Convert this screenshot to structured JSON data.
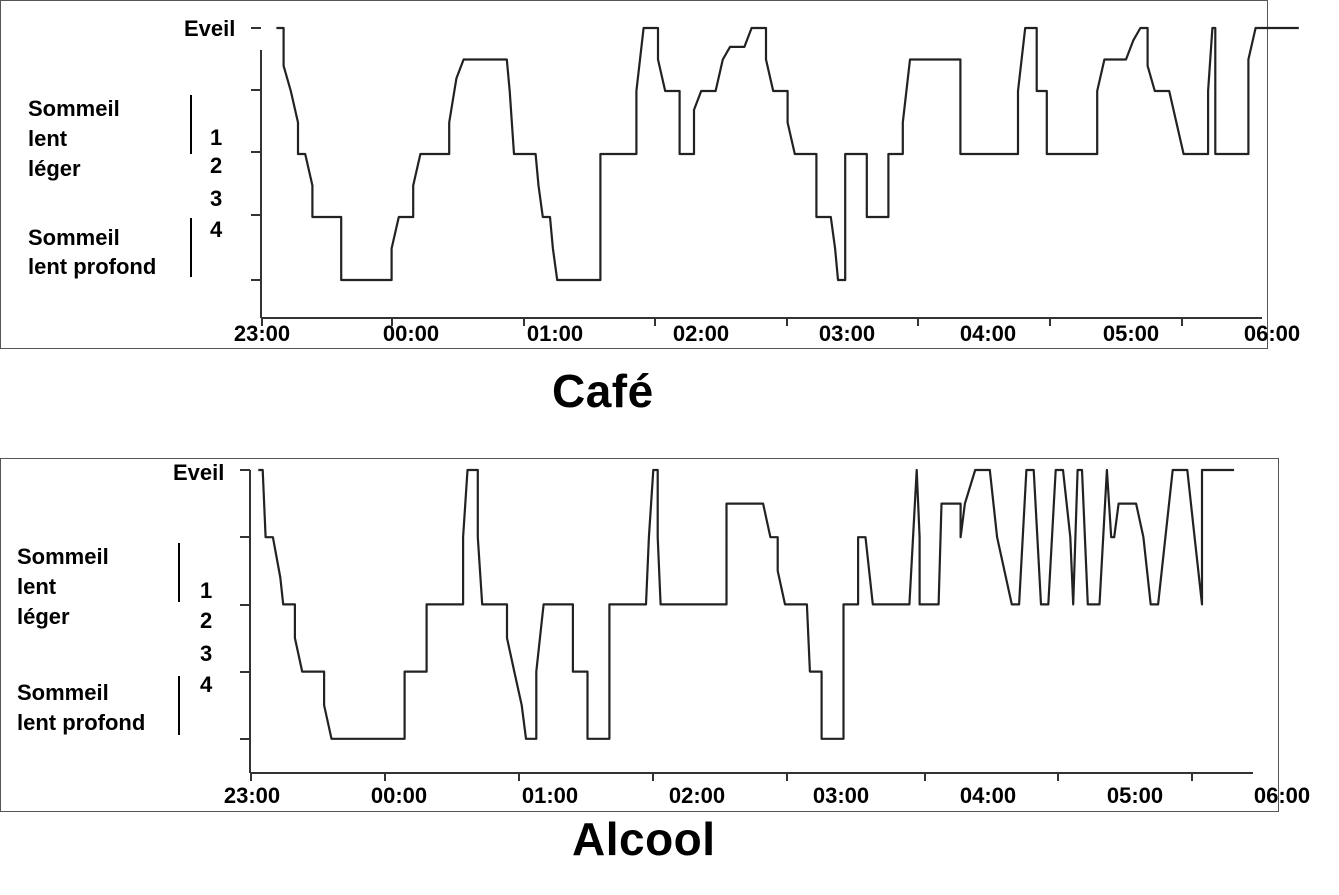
{
  "chart_data": [
    {
      "type": "line",
      "title": "Café",
      "y_categories": [
        "Eveil",
        "1",
        "2",
        "3",
        "4"
      ],
      "y_group_labels": [
        {
          "lines": [
            "Sommeil",
            "lent",
            "léger"
          ],
          "covers": [
            "1",
            "2"
          ]
        },
        {
          "lines": [
            "Sommeil",
            "lent profond"
          ],
          "covers": [
            "3",
            "4"
          ]
        }
      ],
      "x_tick_labels": [
        "23:00",
        "00:00",
        "01:00",
        "02:00",
        "03:00",
        "04:00",
        "05:00",
        "06:00"
      ],
      "x_unit": "hours after 23:00",
      "y_unit": "sleep stage (0 = Eveil, 4 = stage 4)",
      "xlim": [
        0,
        7
      ],
      "series": [
        {
          "points": [
            [
              0.1,
              0
            ],
            [
              0.15,
              0
            ],
            [
              0.15,
              0.6
            ],
            [
              0.2,
              1
            ],
            [
              0.25,
              1.5
            ],
            [
              0.25,
              2
            ],
            [
              0.3,
              2
            ],
            [
              0.35,
              2.5
            ],
            [
              0.35,
              3
            ],
            [
              0.55,
              3
            ],
            [
              0.55,
              4
            ],
            [
              0.9,
              4
            ],
            [
              0.9,
              3.5
            ],
            [
              0.95,
              3
            ],
            [
              1.05,
              3
            ],
            [
              1.05,
              2.5
            ],
            [
              1.1,
              2
            ],
            [
              1.3,
              2
            ],
            [
              1.3,
              1.5
            ],
            [
              1.35,
              0.8
            ],
            [
              1.4,
              0.5
            ],
            [
              1.7,
              0.5
            ],
            [
              1.72,
              1
            ],
            [
              1.75,
              2
            ],
            [
              1.9,
              2
            ],
            [
              1.92,
              2.5
            ],
            [
              1.95,
              3
            ],
            [
              2.0,
              3
            ],
            [
              2.02,
              3.5
            ],
            [
              2.05,
              4
            ],
            [
              2.35,
              4
            ],
            [
              2.35,
              2
            ],
            [
              2.6,
              2
            ],
            [
              2.6,
              1
            ],
            [
              2.65,
              0
            ],
            [
              2.75,
              0
            ],
            [
              2.75,
              0.5
            ],
            [
              2.8,
              1
            ],
            [
              2.9,
              1
            ],
            [
              2.9,
              2
            ],
            [
              3.0,
              2
            ],
            [
              3.0,
              1.3
            ],
            [
              3.05,
              1
            ],
            [
              3.15,
              1
            ],
            [
              3.2,
              0.5
            ],
            [
              3.25,
              0.3
            ],
            [
              3.35,
              0.3
            ],
            [
              3.4,
              0
            ],
            [
              3.5,
              0
            ],
            [
              3.5,
              0.5
            ],
            [
              3.55,
              1
            ],
            [
              3.65,
              1
            ],
            [
              3.65,
              1.5
            ],
            [
              3.7,
              2
            ],
            [
              3.85,
              2
            ],
            [
              3.85,
              3
            ],
            [
              3.95,
              3
            ],
            [
              3.98,
              3.5
            ],
            [
              4.0,
              4
            ],
            [
              4.05,
              4
            ],
            [
              4.05,
              2
            ],
            [
              4.2,
              2
            ],
            [
              4.2,
              3
            ],
            [
              4.35,
              3
            ],
            [
              4.35,
              2
            ],
            [
              4.45,
              2
            ],
            [
              4.45,
              1.5
            ],
            [
              4.5,
              0.5
            ],
            [
              4.85,
              0.5
            ],
            [
              4.85,
              2
            ],
            [
              5.25,
              2
            ],
            [
              5.25,
              1
            ],
            [
              5.3,
              0
            ],
            [
              5.38,
              0
            ],
            [
              5.38,
              1
            ],
            [
              5.45,
              1
            ],
            [
              5.45,
              2
            ],
            [
              5.8,
              2
            ],
            [
              5.8,
              1
            ],
            [
              5.85,
              0.5
            ],
            [
              6.0,
              0.5
            ],
            [
              6.05,
              0.2
            ],
            [
              6.1,
              0
            ],
            [
              6.15,
              0
            ],
            [
              6.15,
              0.6
            ],
            [
              6.2,
              1
            ],
            [
              6.3,
              1
            ],
            [
              6.35,
              1.5
            ],
            [
              6.4,
              2
            ],
            [
              6.57,
              2
            ],
            [
              6.57,
              1
            ],
            [
              6.6,
              0
            ],
            [
              6.62,
              0
            ],
            [
              6.62,
              2
            ],
            [
              6.85,
              2
            ],
            [
              6.85,
              0.5
            ],
            [
              6.9,
              0
            ],
            [
              7.2,
              0
            ]
          ]
        }
      ]
    },
    {
      "type": "line",
      "title": "Alcool",
      "y_categories": [
        "Eveil",
        "1",
        "2",
        "3",
        "4"
      ],
      "y_group_labels": [
        {
          "lines": [
            "Sommeil",
            "lent",
            "léger"
          ],
          "covers": [
            "1",
            "2"
          ]
        },
        {
          "lines": [
            "Sommeil",
            "lent profond"
          ],
          "covers": [
            "3",
            "4"
          ]
        }
      ],
      "x_tick_labels": [
        "23:00",
        "00:00",
        "01:00",
        "02:00",
        "03:00",
        "04:00",
        "05:00",
        "06:00"
      ],
      "x_unit": "hours after 23:00",
      "y_unit": "sleep stage (0 = Eveil, 4 = stage 4)",
      "xlim": [
        0,
        7
      ],
      "series": [
        {
          "points": [
            [
              0.05,
              0
            ],
            [
              0.08,
              0
            ],
            [
              0.1,
              1
            ],
            [
              0.15,
              1
            ],
            [
              0.2,
              1.6
            ],
            [
              0.22,
              2
            ],
            [
              0.3,
              2
            ],
            [
              0.3,
              2.5
            ],
            [
              0.35,
              3
            ],
            [
              0.5,
              3
            ],
            [
              0.5,
              3.5
            ],
            [
              0.55,
              4
            ],
            [
              1.05,
              4
            ],
            [
              1.05,
              3
            ],
            [
              1.2,
              3
            ],
            [
              1.2,
              2
            ],
            [
              1.45,
              2
            ],
            [
              1.45,
              1
            ],
            [
              1.48,
              0
            ],
            [
              1.55,
              0
            ],
            [
              1.55,
              1
            ],
            [
              1.58,
              2
            ],
            [
              1.75,
              2
            ],
            [
              1.75,
              2.5
            ],
            [
              1.8,
              3
            ],
            [
              1.85,
              3.5
            ],
            [
              1.88,
              4
            ],
            [
              1.95,
              4
            ],
            [
              1.95,
              3
            ],
            [
              2.0,
              2
            ],
            [
              2.2,
              2
            ],
            [
              2.2,
              3
            ],
            [
              2.3,
              3
            ],
            [
              2.3,
              4
            ],
            [
              2.45,
              4
            ],
            [
              2.45,
              2
            ],
            [
              2.7,
              2
            ],
            [
              2.72,
              1
            ],
            [
              2.75,
              0
            ],
            [
              2.78,
              0
            ],
            [
              2.78,
              1
            ],
            [
              2.8,
              2
            ],
            [
              3.25,
              2
            ],
            [
              3.25,
              0.5
            ],
            [
              3.5,
              0.5
            ],
            [
              3.55,
              1
            ],
            [
              3.6,
              1
            ],
            [
              3.6,
              1.5
            ],
            [
              3.65,
              2
            ],
            [
              3.8,
              2
            ],
            [
              3.82,
              3
            ],
            [
              3.9,
              3
            ],
            [
              3.9,
              4
            ],
            [
              4.05,
              4
            ],
            [
              4.05,
              2
            ],
            [
              4.15,
              2
            ],
            [
              4.15,
              1
            ],
            [
              4.2,
              1
            ],
            [
              4.25,
              2
            ],
            [
              4.5,
              2
            ],
            [
              4.55,
              0
            ],
            [
              4.57,
              1
            ],
            [
              4.57,
              2
            ],
            [
              4.7,
              2
            ],
            [
              4.72,
              0.5
            ],
            [
              4.85,
              0.5
            ],
            [
              4.85,
              1
            ],
            [
              4.88,
              0.5
            ],
            [
              4.95,
              0
            ],
            [
              5.05,
              0
            ],
            [
              5.1,
              1
            ],
            [
              5.2,
              2
            ],
            [
              5.25,
              2
            ],
            [
              5.3,
              0
            ],
            [
              5.35,
              0
            ],
            [
              5.4,
              2
            ],
            [
              5.45,
              2
            ],
            [
              5.5,
              0
            ],
            [
              5.55,
              0
            ],
            [
              5.6,
              1
            ],
            [
              5.62,
              2
            ],
            [
              5.65,
              0
            ],
            [
              5.68,
              0
            ],
            [
              5.72,
              2
            ],
            [
              5.8,
              2
            ],
            [
              5.85,
              0
            ],
            [
              5.88,
              1
            ],
            [
              5.9,
              1
            ],
            [
              5.93,
              0.5
            ],
            [
              6.05,
              0.5
            ],
            [
              6.1,
              1
            ],
            [
              6.15,
              2
            ],
            [
              6.2,
              2
            ],
            [
              6.3,
              0
            ],
            [
              6.4,
              0
            ],
            [
              6.45,
              1
            ],
            [
              6.5,
              2
            ],
            [
              6.5,
              0
            ],
            [
              6.72,
              0
            ]
          ]
        }
      ]
    }
  ]
}
